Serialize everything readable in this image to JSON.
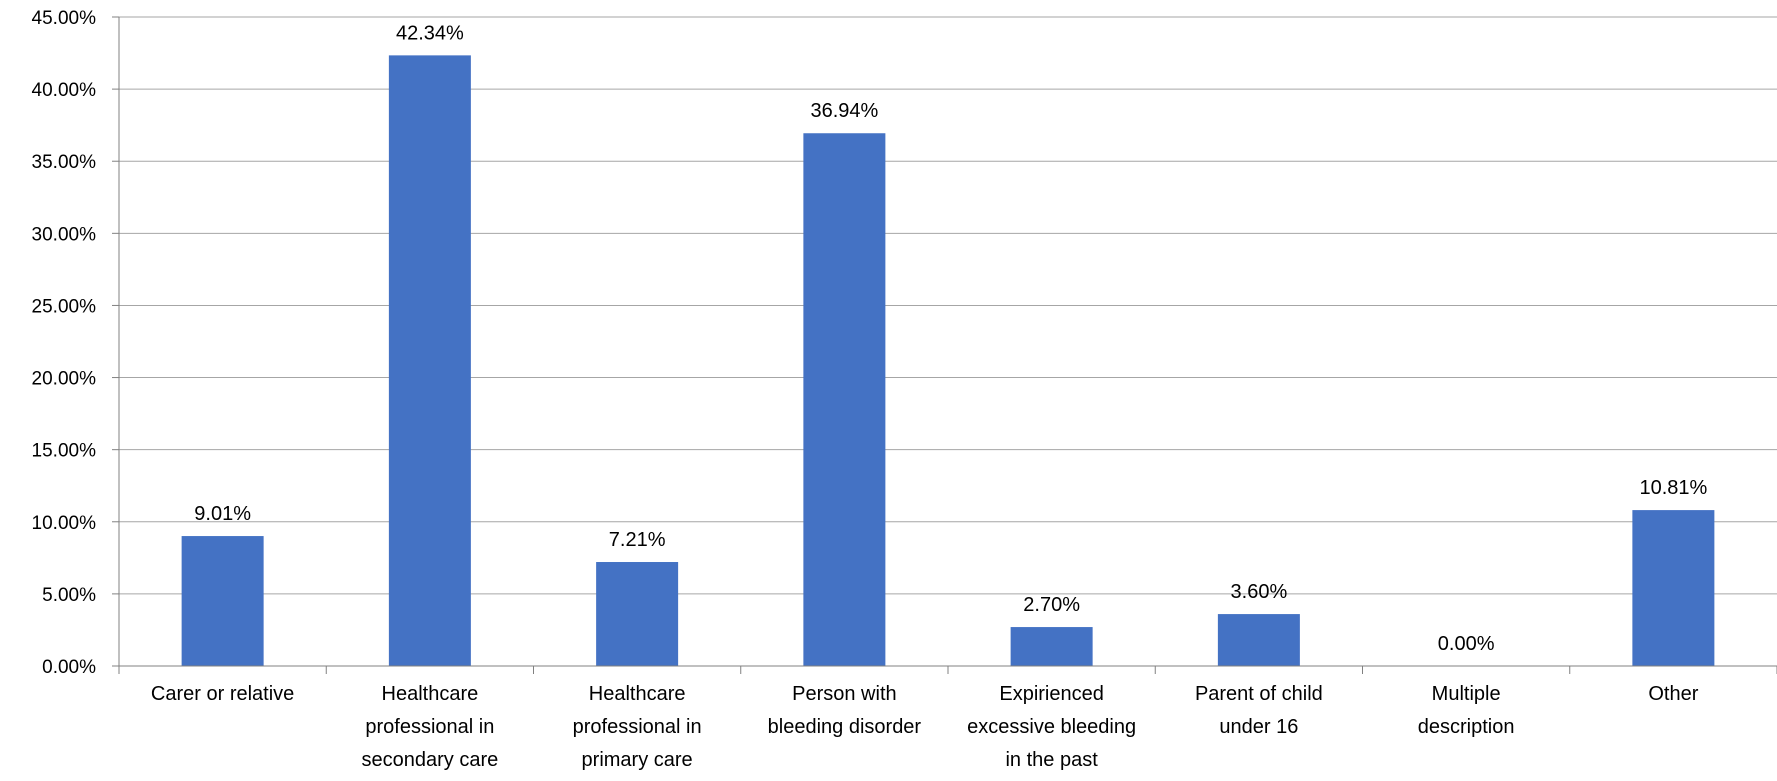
{
  "chart_data": {
    "type": "bar",
    "categories": [
      [
        "Carer or relative"
      ],
      [
        "Healthcare",
        "professional in",
        "secondary care"
      ],
      [
        "Healthcare",
        "professional in",
        "primary care"
      ],
      [
        "Person with",
        "bleeding disorder"
      ],
      [
        "Expirienced",
        "excessive bleeding",
        "in the past"
      ],
      [
        "Parent of child",
        "under 16"
      ],
      [
        "Multiple",
        "description"
      ],
      [
        "Other"
      ]
    ],
    "values": [
      9.01,
      42.34,
      7.21,
      36.94,
      2.7,
      3.6,
      0.0,
      10.81
    ],
    "data_labels": [
      "9.01%",
      "42.34%",
      "7.21%",
      "36.94%",
      "2.70%",
      "3.60%",
      "0.00%",
      "10.81%"
    ],
    "yticks": [
      0,
      5,
      10,
      15,
      20,
      25,
      30,
      35,
      40,
      45
    ],
    "ytick_labels": [
      "0.00%",
      "5.00%",
      "10.00%",
      "15.00%",
      "20.00%",
      "25.00%",
      "30.00%",
      "35.00%",
      "40.00%",
      "45.00%"
    ],
    "ylim": [
      0,
      45
    ],
    "grid": true,
    "bar_color": "#4472c4"
  }
}
